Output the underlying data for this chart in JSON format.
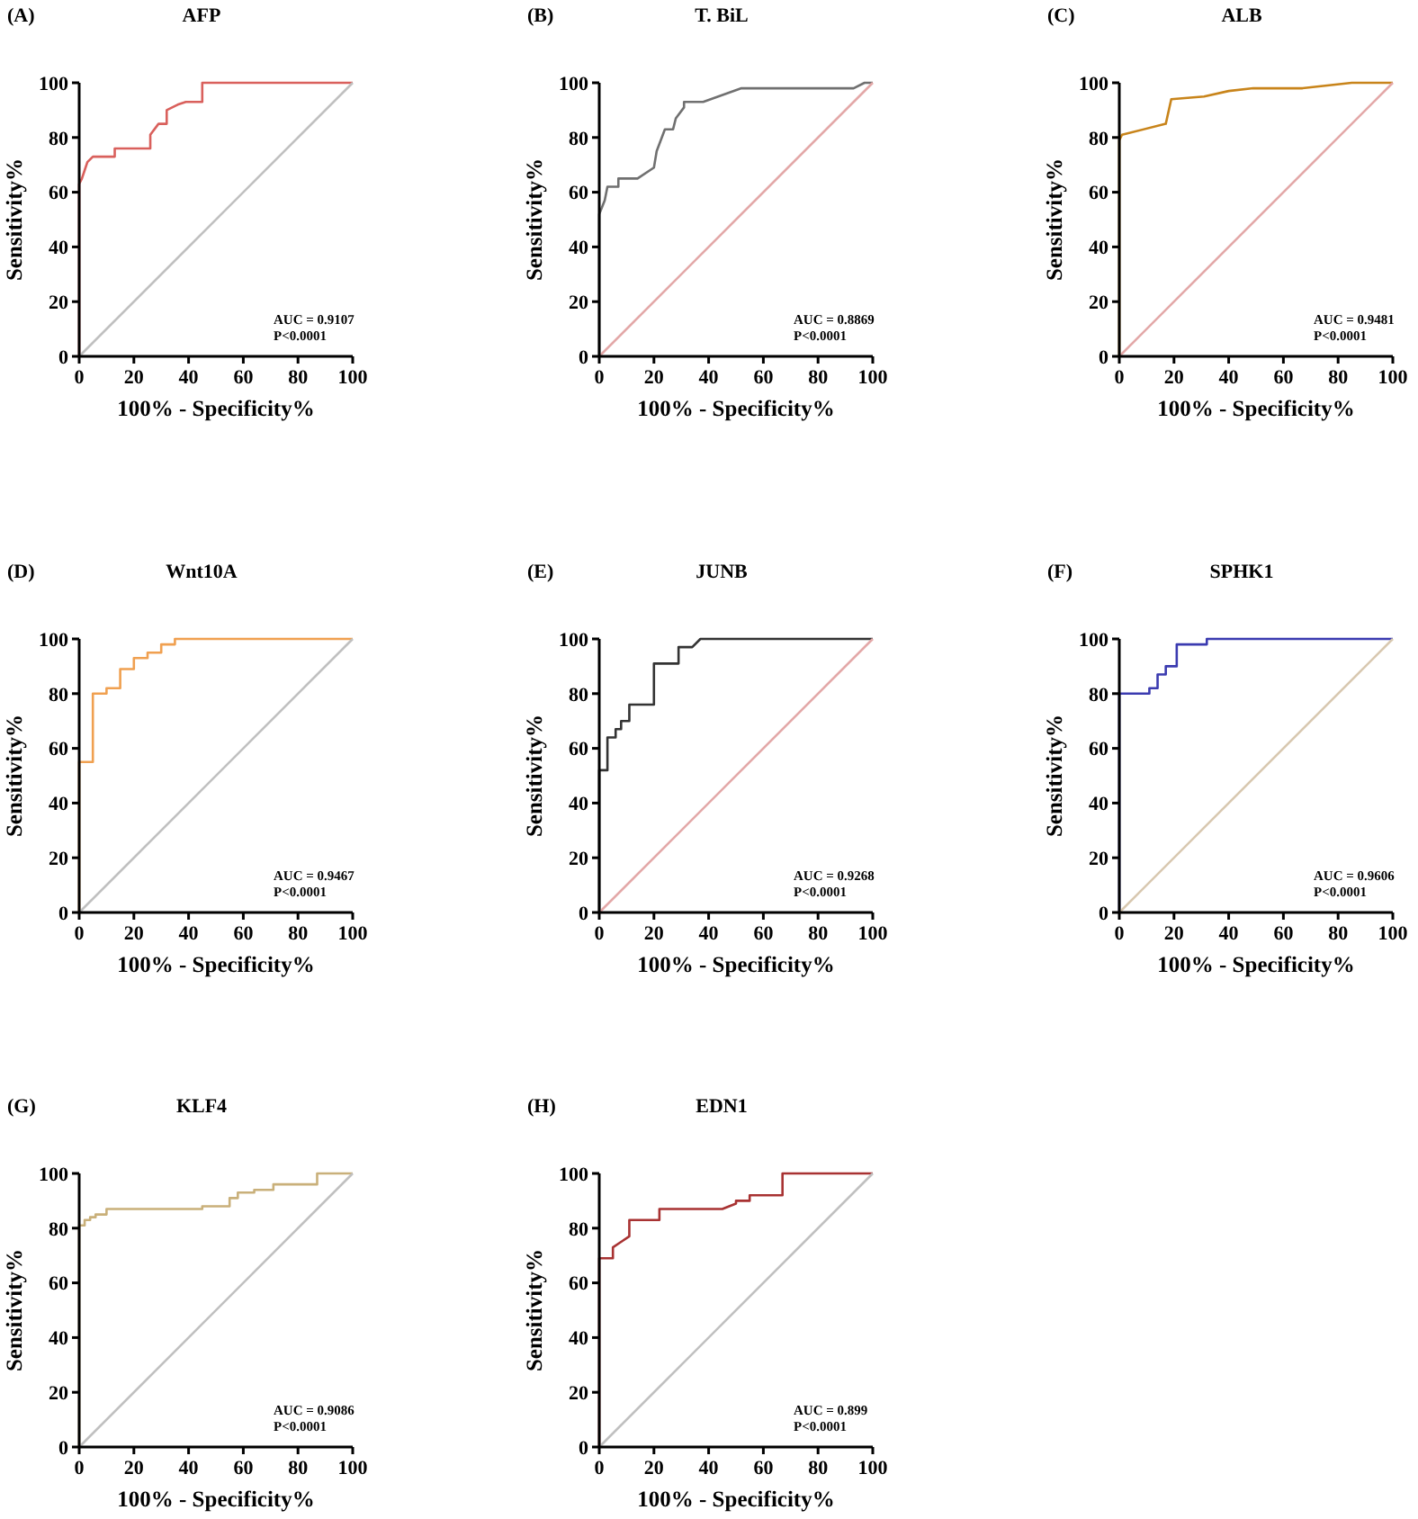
{
  "chart_data": [
    {
      "type": "line",
      "title": "AFP",
      "annotations": [
        "(A)",
        "AUC = 0.9107",
        "P<0.0001"
      ],
      "xlabel": "100% - Specificity%",
      "ylabel": "Sensitivity%",
      "xlim": [
        0,
        100
      ],
      "ylim": [
        0,
        100
      ],
      "xticks": [
        0,
        20,
        40,
        60,
        80,
        100
      ],
      "yticks": [
        0,
        20,
        40,
        60,
        80,
        100
      ],
      "series": [
        {
          "color": "#d9605c",
          "x": [
            0,
            0,
            1,
            2,
            3,
            5,
            13,
            13,
            26,
            26,
            29,
            32,
            32,
            36,
            39,
            45,
            45,
            100
          ],
          "values": [
            0,
            63,
            65,
            68,
            71,
            73,
            73,
            76,
            76,
            81,
            85,
            85,
            90,
            92,
            93,
            93,
            100,
            100
          ]
        },
        {
          "color": "#c0c0c0",
          "x": [
            0,
            100
          ],
          "values": [
            0,
            100
          ]
        }
      ]
    },
    {
      "type": "line",
      "title": "T. BiL",
      "annotations": [
        "(B)",
        "AUC = 0.8869",
        "P<0.0001"
      ],
      "xlabel": "100% - Specificity%",
      "ylabel": "Sensitivity%",
      "xlim": [
        0,
        100
      ],
      "ylim": [
        0,
        100
      ],
      "xticks": [
        0,
        20,
        40,
        60,
        80,
        100
      ],
      "yticks": [
        0,
        20,
        40,
        60,
        80,
        100
      ],
      "series": [
        {
          "color": "#707070",
          "x": [
            0,
            0,
            2,
            3,
            7,
            7,
            14,
            20,
            21,
            24,
            27,
            28,
            31,
            31,
            38,
            52,
            93,
            97,
            100
          ],
          "values": [
            0,
            52,
            57,
            62,
            62,
            65,
            65,
            69,
            75,
            83,
            83,
            87,
            91,
            93,
            93,
            98,
            98,
            100,
            100
          ]
        },
        {
          "color": "#e3a8a8",
          "x": [
            0,
            100
          ],
          "values": [
            0,
            100
          ]
        }
      ]
    },
    {
      "type": "line",
      "title": "ALB",
      "annotations": [
        "(C)",
        "AUC = 0.9481",
        "P<0.0001"
      ],
      "xlabel": "100% - Specificity%",
      "ylabel": "Sensitivity%",
      "xlim": [
        0,
        100
      ],
      "ylim": [
        0,
        100
      ],
      "xticks": [
        0,
        20,
        40,
        60,
        80,
        100
      ],
      "yticks": [
        0,
        20,
        40,
        60,
        80,
        100
      ],
      "series": [
        {
          "color": "#c8841a",
          "x": [
            0,
            0,
            1,
            17,
            19,
            31,
            40,
            49,
            67,
            85,
            100
          ],
          "values": [
            0,
            79,
            81,
            85,
            94,
            95,
            97,
            98,
            98,
            100,
            100
          ]
        },
        {
          "color": "#e3a8a8",
          "x": [
            0,
            100
          ],
          "values": [
            0,
            100
          ]
        }
      ]
    },
    {
      "type": "line",
      "title": "Wnt10A",
      "annotations": [
        "(D)",
        "AUC = 0.9467",
        "P<0.0001"
      ],
      "xlabel": "100% - Specificity%",
      "ylabel": "Sensitivity%",
      "xlim": [
        0,
        100
      ],
      "ylim": [
        0,
        100
      ],
      "xticks": [
        0,
        20,
        40,
        60,
        80,
        100
      ],
      "yticks": [
        0,
        20,
        40,
        60,
        80,
        100
      ],
      "series": [
        {
          "color": "#f0a050",
          "x": [
            0,
            0,
            5,
            5,
            10,
            10,
            15,
            15,
            20,
            20,
            25,
            25,
            30,
            30,
            35,
            35,
            100
          ],
          "values": [
            0,
            55,
            55,
            80,
            80,
            82,
            82,
            89,
            89,
            93,
            93,
            95,
            95,
            98,
            98,
            100,
            100
          ]
        },
        {
          "color": "#c0c0c0",
          "x": [
            0,
            100
          ],
          "values": [
            0,
            100
          ]
        }
      ]
    },
    {
      "type": "line",
      "title": "JUNB",
      "annotations": [
        "(E)",
        "AUC = 0.9268",
        "P<0.0001"
      ],
      "xlabel": "100% - Specificity%",
      "ylabel": "Sensitivity%",
      "xlim": [
        0,
        100
      ],
      "ylim": [
        0,
        100
      ],
      "xticks": [
        0,
        20,
        40,
        60,
        80,
        100
      ],
      "yticks": [
        0,
        20,
        40,
        60,
        80,
        100
      ],
      "series": [
        {
          "color": "#333333",
          "x": [
            0,
            0,
            3,
            3,
            6,
            6,
            8,
            8,
            11,
            11,
            20,
            20,
            29,
            29,
            34,
            37,
            100
          ],
          "values": [
            0,
            52,
            52,
            64,
            64,
            67,
            67,
            70,
            70,
            76,
            76,
            91,
            91,
            97,
            97,
            100,
            100
          ]
        },
        {
          "color": "#e3a8a8",
          "x": [
            0,
            100
          ],
          "values": [
            0,
            100
          ]
        }
      ]
    },
    {
      "type": "line",
      "title": "SPHK1",
      "annotations": [
        "(F)",
        "AUC = 0.9606",
        "P<0.0001"
      ],
      "xlabel": "100% - Specificity%",
      "ylabel": "Sensitivity%",
      "xlim": [
        0,
        100
      ],
      "ylim": [
        0,
        100
      ],
      "xticks": [
        0,
        20,
        40,
        60,
        80,
        100
      ],
      "yticks": [
        0,
        20,
        40,
        60,
        80,
        100
      ],
      "series": [
        {
          "color": "#3b3bb0",
          "x": [
            0,
            0,
            11,
            11,
            14,
            14,
            17,
            17,
            21,
            21,
            32,
            32,
            100
          ],
          "values": [
            0,
            80,
            80,
            82,
            82,
            87,
            87,
            90,
            90,
            98,
            98,
            100,
            100
          ]
        },
        {
          "color": "#d8c8b0",
          "x": [
            0,
            100
          ],
          "values": [
            0,
            100
          ]
        }
      ]
    },
    {
      "type": "line",
      "title": "KLF4",
      "annotations": [
        "(G)",
        "AUC = 0.9086",
        "P<0.0001"
      ],
      "xlabel": "100% - Specificity%",
      "ylabel": "Sensitivity%",
      "xlim": [
        0,
        100
      ],
      "ylim": [
        0,
        100
      ],
      "xticks": [
        0,
        20,
        40,
        60,
        80,
        100
      ],
      "yticks": [
        0,
        20,
        40,
        60,
        80,
        100
      ],
      "series": [
        {
          "color": "#c9b07a",
          "x": [
            0,
            0,
            2,
            2,
            4,
            4,
            6,
            6,
            10,
            10,
            45,
            45,
            55,
            55,
            58,
            58,
            64,
            64,
            71,
            71,
            87,
            87,
            100
          ],
          "values": [
            0,
            81,
            81,
            83,
            83,
            84,
            84,
            85,
            85,
            87,
            87,
            88,
            88,
            91,
            91,
            93,
            93,
            94,
            94,
            96,
            96,
            100,
            100
          ]
        },
        {
          "color": "#c0c0c0",
          "x": [
            0,
            100
          ],
          "values": [
            0,
            100
          ]
        }
      ]
    },
    {
      "type": "line",
      "title": "EDN1",
      "annotations": [
        "(H)",
        "AUC = 0.899",
        "P<0.0001"
      ],
      "xlabel": "100% - Specificity%",
      "ylabel": "Sensitivity%",
      "xlim": [
        0,
        100
      ],
      "ylim": [
        0,
        100
      ],
      "xticks": [
        0,
        20,
        40,
        60,
        80,
        100
      ],
      "yticks": [
        0,
        20,
        40,
        60,
        80,
        100
      ],
      "series": [
        {
          "color": "#a83232",
          "x": [
            0,
            0,
            5,
            5,
            8,
            11,
            11,
            22,
            22,
            45,
            50,
            50,
            55,
            55,
            67,
            67,
            100
          ],
          "values": [
            0,
            69,
            69,
            73,
            75,
            77,
            83,
            83,
            87,
            87,
            89,
            90,
            90,
            92,
            92,
            100,
            100
          ]
        },
        {
          "color": "#c0c0c0",
          "x": [
            0,
            100
          ],
          "values": [
            0,
            100
          ]
        }
      ]
    }
  ]
}
